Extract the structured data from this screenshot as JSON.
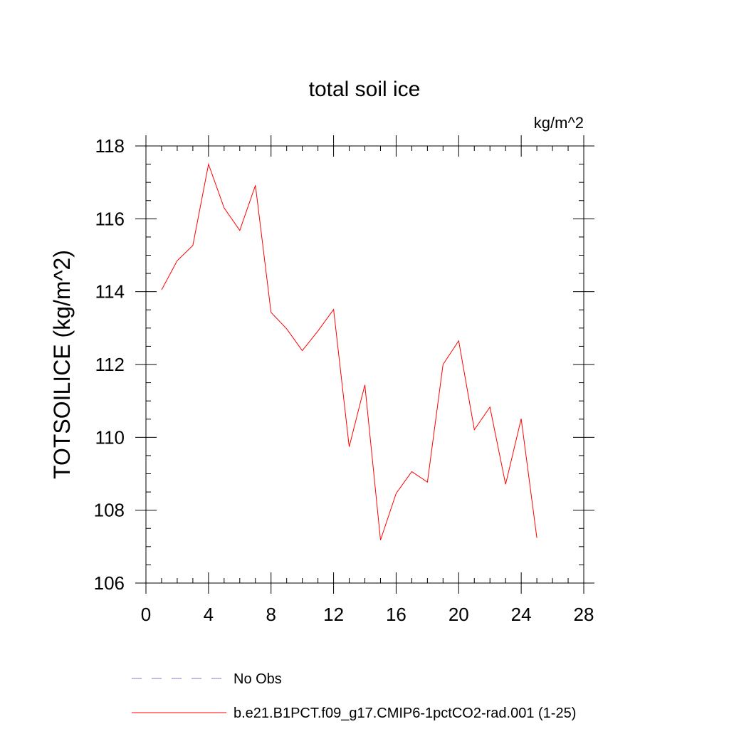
{
  "chart_data": {
    "type": "line",
    "title": "total soil ice",
    "units_label": "kg/m^2",
    "xlabel": "",
    "ylabel": "TOTSOILICE  (kg/m^2)",
    "xlim": [
      0,
      28
    ],
    "ylim": [
      106,
      118
    ],
    "x_major_ticks": [
      0,
      4,
      8,
      12,
      16,
      20,
      24,
      28
    ],
    "x_tick_labels": [
      "0",
      "4",
      "8",
      "12",
      "16",
      "20",
      "24",
      "28"
    ],
    "y_major_ticks": [
      106,
      108,
      110,
      112,
      114,
      116,
      118
    ],
    "y_tick_labels": [
      "106",
      "108",
      "110",
      "112",
      "114",
      "116",
      "118"
    ],
    "grid": false,
    "legend_position": "bottom",
    "series": [
      {
        "name": "b.e21.B1PCT.f09_g17.CMIP6-1pctCO2-rad.001 (1-25)",
        "color": "#ff0000",
        "style": "solid",
        "x": [
          1,
          2,
          3,
          4,
          5,
          6,
          7,
          8,
          9,
          10,
          11,
          12,
          13,
          14,
          15,
          16,
          17,
          18,
          19,
          20,
          21,
          22,
          23,
          24,
          25
        ],
        "y": [
          114.05,
          114.85,
          115.27,
          117.5,
          116.3,
          115.68,
          116.92,
          113.43,
          112.98,
          112.38,
          112.92,
          113.51,
          109.74,
          111.44,
          107.18,
          108.46,
          109.06,
          108.77,
          112.0,
          112.65,
          110.21,
          110.83,
          108.71,
          110.51,
          107.24
        ]
      }
    ],
    "legend": [
      {
        "label": "No Obs",
        "color": "#7f7fcc",
        "style": "dashed"
      },
      {
        "label": "b.e21.B1PCT.f09_g17.CMIP6-1pctCO2-rad.001 (1-25)",
        "color": "#ff0000",
        "style": "solid"
      }
    ]
  }
}
